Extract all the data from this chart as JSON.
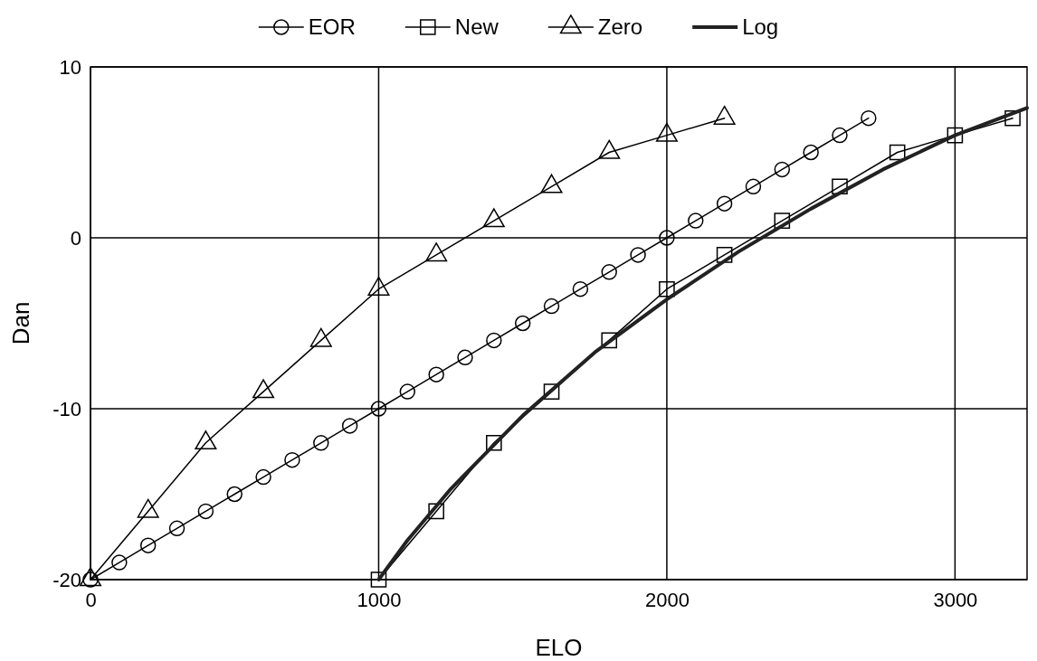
{
  "chart_data": {
    "type": "line",
    "xlabel": "ELO",
    "ylabel": "Dan",
    "xlim": [
      0,
      3250
    ],
    "ylim": [
      -20,
      10
    ],
    "xticks": [
      0,
      1000,
      2000,
      3000
    ],
    "yticks": [
      -20,
      -10,
      0,
      10
    ],
    "grid": true,
    "legend": "top",
    "series": [
      {
        "name": "EOR",
        "color": "#000000",
        "marker": "circle",
        "x": [
          0,
          100,
          200,
          300,
          400,
          500,
          600,
          700,
          800,
          900,
          1000,
          1100,
          1200,
          1300,
          1400,
          1500,
          1600,
          1700,
          1800,
          1900,
          2000,
          2100,
          2200,
          2300,
          2400,
          2500,
          2600,
          2700
        ],
        "values": [
          -20,
          -19,
          -18,
          -17,
          -16,
          -15,
          -14,
          -13,
          -12,
          -11,
          -10,
          -9,
          -8,
          -7,
          -6,
          -5,
          -4,
          -3,
          -2,
          -1,
          0,
          1,
          2,
          3,
          4,
          5,
          6,
          7
        ]
      },
      {
        "name": "New",
        "color": "#000000",
        "marker": "square",
        "x": [
          1000,
          1200,
          1400,
          1600,
          1800,
          2000,
          2200,
          2400,
          2600,
          2800,
          3000,
          3200
        ],
        "values": [
          -20,
          -16,
          -12,
          -9,
          -6,
          -3,
          -1,
          1,
          3,
          5,
          6,
          7
        ]
      },
      {
        "name": "Zero",
        "color": "#000000",
        "marker": "triangle",
        "x": [
          0,
          200,
          400,
          600,
          800,
          1000,
          1200,
          1400,
          1600,
          1800,
          2000,
          2200
        ],
        "values": [
          -20,
          -16,
          -12,
          -9,
          -6,
          -3,
          -1,
          1,
          3,
          5,
          6,
          7
        ]
      },
      {
        "name": "Log",
        "color": "#222222",
        "marker": "none",
        "x": [
          1000,
          1100,
          1200,
          1250,
          1500,
          1750,
          2000,
          2250,
          2500,
          2750,
          3000,
          3250
        ],
        "values": [
          -20,
          -17.7,
          -15.7,
          -14.7,
          -10.4,
          -6.7,
          -3.6,
          -0.8,
          1.7,
          4,
          6,
          7.6
        ]
      }
    ]
  }
}
